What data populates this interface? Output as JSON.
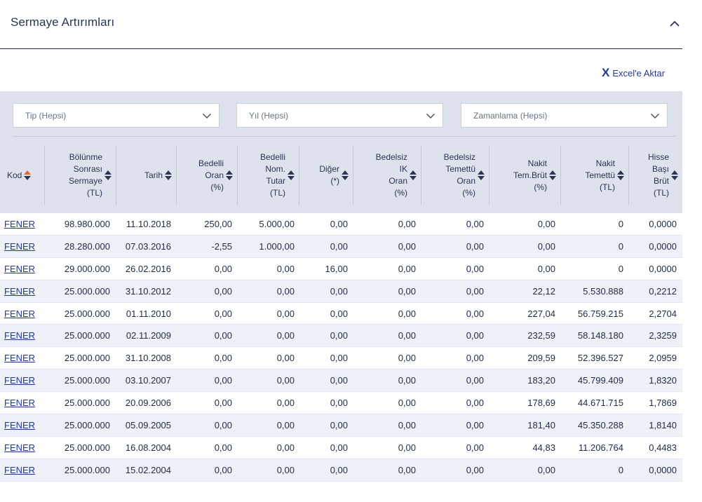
{
  "section": {
    "title": "Sermaye Artırımları"
  },
  "export": {
    "icon": "excel-x-icon",
    "glyph": "X",
    "label": "Excel'e Aktar"
  },
  "filters": [
    {
      "name": "type-filter",
      "value": "Tip (Hepsi)"
    },
    {
      "name": "year-filter",
      "value": "Yıl (Hepsi)"
    },
    {
      "name": "timing-filter",
      "value": "Zamanlama (Hepsi)"
    }
  ],
  "columns": [
    {
      "key": "kod",
      "label": "Kod",
      "active": true
    },
    {
      "key": "sermaye",
      "label": "Bölünme Sonrası Sermaye (TL)"
    },
    {
      "key": "tarih",
      "label": "Tarih"
    },
    {
      "key": "bedelli_oran",
      "label": "Bedelli Oran (%)"
    },
    {
      "key": "bedelli_nom",
      "label": "Bedelli Nom. Tutar (TL)"
    },
    {
      "key": "diger",
      "label": "Diğer (*)"
    },
    {
      "key": "ik_oran",
      "label": "Bedelsiz IK Oran (%)"
    },
    {
      "key": "temettu_oran",
      "label": "Bedelsiz Temettü Oran (%)"
    },
    {
      "key": "nakit_brut",
      "label": "Nakit Tem.Brüt (%)"
    },
    {
      "key": "nakit_temettu",
      "label": "Nakit Temettü (TL)"
    },
    {
      "key": "hisse_basi",
      "label": "Hisse Başı Brüt (TL)"
    }
  ],
  "rows": [
    [
      "FENER",
      "98.980.000",
      "11.10.2018",
      "250,00",
      "5.000,00",
      "0,00",
      "0,00",
      "0,00",
      "0,00",
      "0",
      "0,0000"
    ],
    [
      "FENER",
      "28.280.000",
      "07.03.2016",
      "-2,55",
      "1.000,00",
      "0,00",
      "0,00",
      "0,00",
      "0,00",
      "0",
      "0,0000"
    ],
    [
      "FENER",
      "29.000.000",
      "26.02.2016",
      "0,00",
      "0,00",
      "16,00",
      "0,00",
      "0,00",
      "0,00",
      "0",
      "0,0000"
    ],
    [
      "FENER",
      "25.000.000",
      "31.10.2012",
      "0,00",
      "0,00",
      "0,00",
      "0,00",
      "0,00",
      "22,12",
      "5.530.888",
      "0,2212"
    ],
    [
      "FENER",
      "25.000.000",
      "01.11.2010",
      "0,00",
      "0,00",
      "0,00",
      "0,00",
      "0,00",
      "227,04",
      "56.759.215",
      "2,2704"
    ],
    [
      "FENER",
      "25.000.000",
      "02.11.2009",
      "0,00",
      "0,00",
      "0,00",
      "0,00",
      "0,00",
      "232,59",
      "58.148.180",
      "2,3259"
    ],
    [
      "FENER",
      "25.000.000",
      "31.10.2008",
      "0,00",
      "0,00",
      "0,00",
      "0,00",
      "0,00",
      "209,59",
      "52.396.527",
      "2,0959"
    ],
    [
      "FENER",
      "25.000.000",
      "03.10.2007",
      "0,00",
      "0,00",
      "0,00",
      "0,00",
      "0,00",
      "183,20",
      "45.799.409",
      "1,8320"
    ],
    [
      "FENER",
      "25.000.000",
      "20.09.2006",
      "0,00",
      "0,00",
      "0,00",
      "0,00",
      "0,00",
      "178,69",
      "44.671.715",
      "1,7869"
    ],
    [
      "FENER",
      "25.000.000",
      "05.09.2005",
      "0,00",
      "0,00",
      "0,00",
      "0,00",
      "0,00",
      "181,40",
      "45.350.288",
      "1,8140"
    ],
    [
      "FENER",
      "25.000.000",
      "16.08.2004",
      "0,00",
      "0,00",
      "0,00",
      "0,00",
      "0,00",
      "44,83",
      "11.206.764",
      "0,4483"
    ],
    [
      "FENER",
      "25.000.000",
      "15.02.2004",
      "0,00",
      "0,00",
      "0,00",
      "0,00",
      "0,00",
      "0,00",
      "0",
      "0,0000"
    ]
  ],
  "colors": {
    "text": "#1f2a44",
    "link": "#233a8c",
    "filter_bg": "#dde2ed",
    "row_alt": "#eef1f7",
    "sort_active": "#e8662c",
    "sort_default": "#2b3552"
  }
}
